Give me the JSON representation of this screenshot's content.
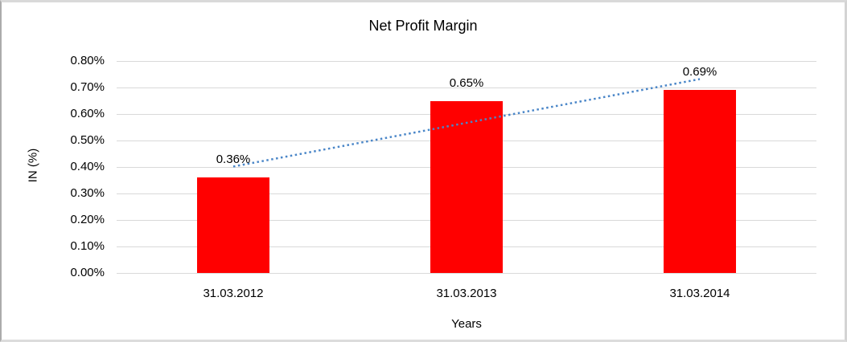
{
  "chart_data": {
    "type": "bar",
    "title": "Net Profit Margin",
    "xlabel": "Years",
    "ylabel": "IN (%)",
    "categories": [
      "31.03.2012",
      "31.03.2013",
      "31.03.2014"
    ],
    "values": [
      0.36,
      0.65,
      0.69
    ],
    "data_labels": [
      "0.36%",
      "0.65%",
      "0.69%"
    ],
    "ylim": [
      0,
      0.8
    ],
    "ytick_labels": [
      "0.00%",
      "0.10%",
      "0.20%",
      "0.30%",
      "0.40%",
      "0.50%",
      "0.60%",
      "0.70%",
      "0.80%"
    ],
    "grid": "horizontal",
    "legend": "none",
    "bar_color": "#ff0000",
    "gridline_color": "#d9d9d9",
    "text_color": "#000000",
    "trendline": {
      "type": "linear",
      "style": "dotted",
      "color": "#4a86c8",
      "endpoint_values_pct": [
        0.4017,
        0.7317
      ]
    }
  }
}
